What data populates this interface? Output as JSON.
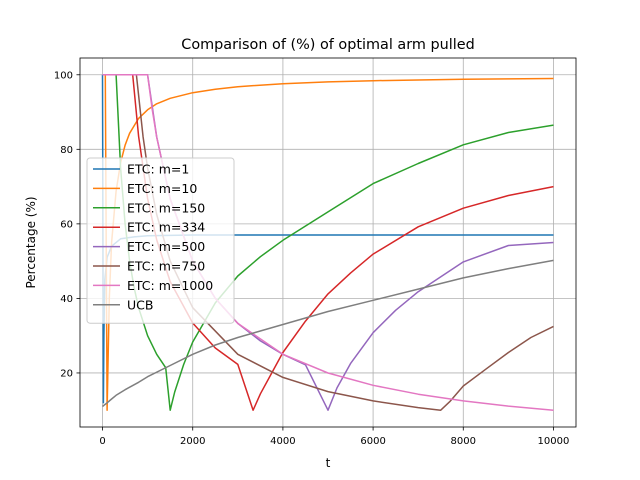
{
  "chart_data": {
    "type": "line",
    "title": "Comparison of (%) of optimal arm pulled",
    "xlabel": "t",
    "ylabel": "Percentage (%)",
    "xlim": [
      -500,
      10500
    ],
    "ylim": [
      5.5,
      104.5
    ],
    "xticks": [
      0,
      2000,
      4000,
      6000,
      8000,
      10000
    ],
    "xtick_labels": [
      "0",
      "2000",
      "4000",
      "6000",
      "8000",
      "10000"
    ],
    "yticks": [
      20,
      40,
      60,
      80,
      100
    ],
    "ytick_labels": [
      "20",
      "40",
      "60",
      "80",
      "100"
    ],
    "grid": true,
    "legend_position": "center-left",
    "series": [
      {
        "name": "ETC: m=1",
        "color": "#1f77b4",
        "x": [
          0,
          10,
          20,
          30,
          50,
          100,
          200,
          400,
          700,
          1000,
          2000,
          5000,
          10000
        ],
        "y": [
          100,
          50,
          12,
          30,
          45,
          51,
          54,
          56,
          56.5,
          56.8,
          57,
          57,
          57
        ]
      },
      {
        "name": "ETC: m=10",
        "color": "#ff7f0e",
        "x": [
          0,
          60,
          100,
          150,
          200,
          300,
          400,
          500,
          600,
          800,
          1000,
          1200,
          1500,
          2000,
          2500,
          3000,
          4000,
          5000,
          6000,
          7000,
          8000,
          9000,
          10000
        ],
        "y": [
          100,
          100,
          10,
          40,
          55,
          68.8,
          76.4,
          81.1,
          84.3,
          88.3,
          90.6,
          92.2,
          93.7,
          95.2,
          96.1,
          96.8,
          97.6,
          98.1,
          98.4,
          98.6,
          98.8,
          98.9,
          99.0
        ]
      },
      {
        "name": "ETC: m=150",
        "color": "#2ca02c",
        "x": [
          0,
          300,
          400,
          500,
          600,
          700,
          800,
          1000,
          1200,
          1400,
          1500,
          1600,
          1800,
          2000,
          2500,
          3000,
          3500,
          4000,
          5000,
          6000,
          7000,
          8000,
          9000,
          10000
        ],
        "y": [
          100,
          100,
          75,
          60,
          50,
          42.9,
          37.5,
          30,
          25,
          21.4,
          10,
          14.9,
          22.3,
          28.3,
          38.8,
          46,
          51.2,
          55.6,
          63.2,
          70.8,
          76.2,
          81.2,
          84.5,
          86.5
        ]
      },
      {
        "name": "ETC: m=334",
        "color": "#d62728",
        "x": [
          0,
          668,
          800,
          1000,
          1200,
          1500,
          2000,
          2500,
          3000,
          3340,
          3500,
          4000,
          4500,
          5000,
          5500,
          6000,
          7000,
          8000,
          9000,
          10000
        ],
        "y": [
          100,
          100,
          83.5,
          66.8,
          55.7,
          44.5,
          33.4,
          26.7,
          22.3,
          10,
          14.4,
          25.5,
          33.9,
          41.2,
          46.8,
          51.9,
          59.2,
          64.2,
          67.6,
          70
        ]
      },
      {
        "name": "ETC: m=500",
        "color": "#9467bd",
        "x": [
          0,
          1000,
          1200,
          1500,
          2000,
          2500,
          3000,
          3500,
          4000,
          4500,
          5000,
          5200,
          5500,
          6000,
          6500,
          7000,
          8000,
          9000,
          10000
        ],
        "y": [
          100,
          100,
          83.3,
          66.7,
          50,
          40,
          33.3,
          28.6,
          25,
          22.2,
          10,
          16,
          22.5,
          30.8,
          36.8,
          41.8,
          49.8,
          54.2,
          55
        ]
      },
      {
        "name": "ETC: m=750",
        "color": "#8c564b",
        "x": [
          0,
          750,
          900,
          1000,
          1200,
          1500,
          2000,
          3000,
          4000,
          5000,
          6000,
          7000,
          7500,
          7700,
          8000,
          8500,
          9000,
          9500,
          10000
        ],
        "y": [
          100,
          100,
          83.3,
          75,
          62.5,
          50,
          37.5,
          25,
          18.8,
          15,
          12.5,
          10.7,
          10,
          12.3,
          16.5,
          21,
          25.5,
          29.5,
          32.5
        ]
      },
      {
        "name": "ETC: m=1000",
        "color": "#e377c2",
        "x": [
          0,
          1000,
          1100,
          1200,
          1500,
          2000,
          2500,
          3000,
          4000,
          5000,
          6000,
          7000,
          8000,
          9000,
          10000
        ],
        "y": [
          100,
          100,
          90.9,
          83.3,
          66.7,
          50,
          40,
          33.3,
          25,
          20,
          16.7,
          14.3,
          12.5,
          11.1,
          10
        ]
      },
      {
        "name": "UCB",
        "color": "#7f7f7f",
        "x": [
          0,
          50,
          100,
          200,
          300,
          500,
          800,
          1000,
          1500,
          2000,
          2500,
          3000,
          4000,
          5000,
          6000,
          7000,
          8000,
          9000,
          10000
        ],
        "y": [
          11,
          11.5,
          12,
          13,
          14,
          15.5,
          17.5,
          19,
          22,
          25,
          27.5,
          29.5,
          33,
          36.5,
          39.5,
          42.5,
          45.5,
          48,
          50.2
        ]
      }
    ]
  }
}
